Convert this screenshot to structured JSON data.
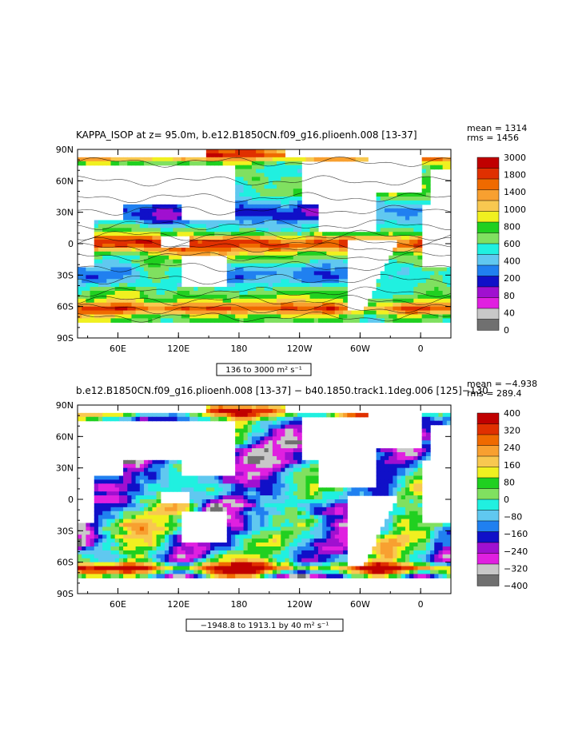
{
  "panels": [
    {
      "title": "KAPPA_ISOP at z=  95.0m, b.e12.B1850CN.f09_g16.plioenh.008  [13-37]",
      "stats": {
        "mean": "mean = 1314",
        "rms": "rms = 1456"
      },
      "range_label": "136 to 3000 m² s⁻¹"
    },
    {
      "title": "b.e12.B1850CN.f09_g16.plioenh.008  [13-37]  −  b40.1850.track1.1deg.006  [125]−130",
      "stats": {
        "mean": "mean = −4.938",
        "rms": "rms = 289.4"
      },
      "range_label": "−1948.8 to 1913.1 by 40 m² s⁻¹"
    }
  ],
  "chart_data": [
    {
      "type": "heatmap",
      "title": "KAPPA_ISOP at z=  95.0m, b.e12.B1850CN.f09_g16.plioenh.008  [13-37]",
      "xlabel": "",
      "ylabel": "",
      "x_ticks": [
        "60E",
        "120E",
        "180",
        "120W",
        "60W",
        "0"
      ],
      "x_tick_lons": [
        60,
        120,
        180,
        240,
        300,
        360
      ],
      "xlim_lon": [
        20,
        390
      ],
      "y_ticks": [
        "90N",
        "60N",
        "30N",
        "0",
        "30S",
        "60S",
        "90S"
      ],
      "y_tick_lats": [
        90,
        60,
        30,
        0,
        -30,
        -60,
        -90
      ],
      "ylim": [
        -90,
        90
      ],
      "colorbar": {
        "labels": [
          "3000",
          "1800",
          "1400",
          "1000",
          "800",
          "600",
          "400",
          "200",
          "80",
          "40",
          "0"
        ],
        "colors": [
          "#c00000",
          "#e03000",
          "#ef6a00",
          "#f8a030",
          "#f8c850",
          "#f0f020",
          "#20d020",
          "#80e060",
          "#20f0e0",
          "#60c8f0",
          "#2080f0",
          "#1010c8",
          "#a010d0",
          "#e020e0",
          "#c8c8c8",
          "#707070"
        ]
      },
      "stats": {
        "mean": 1314,
        "rms": 1456
      },
      "range": {
        "min": 136,
        "max": 3000,
        "units": "m² s⁻¹"
      },
      "contours": true
    },
    {
      "type": "heatmap",
      "title": "b.e12.B1850CN.f09_g16.plioenh.008  [13-37]  −  b40.1850.track1.1deg.006  [125]−130",
      "xlabel": "",
      "ylabel": "",
      "x_ticks": [
        "60E",
        "120E",
        "180",
        "120W",
        "60W",
        "0"
      ],
      "x_tick_lons": [
        60,
        120,
        180,
        240,
        300,
        360
      ],
      "xlim_lon": [
        20,
        390
      ],
      "y_ticks": [
        "90N",
        "60N",
        "30N",
        "0",
        "30S",
        "60S",
        "90S"
      ],
      "y_tick_lats": [
        90,
        60,
        30,
        0,
        -30,
        -60,
        -90
      ],
      "ylim": [
        -90,
        90
      ],
      "colorbar": {
        "labels": [
          "400",
          "320",
          "240",
          "160",
          "80",
          "0",
          "−80",
          "−160",
          "−240",
          "−320",
          "−400"
        ],
        "colors": [
          "#c00000",
          "#e03000",
          "#ef6a00",
          "#f8a030",
          "#f8c850",
          "#f0f020",
          "#20d020",
          "#80e060",
          "#20f0e0",
          "#60c8f0",
          "#2080f0",
          "#1010c8",
          "#a010d0",
          "#e020e0",
          "#c8c8c8",
          "#707070"
        ]
      },
      "stats": {
        "mean": -4.938,
        "rms": 289.4
      },
      "range": {
        "min": -1948.8,
        "max": 1913.1,
        "step": 40,
        "units": "m² s⁻¹"
      },
      "contours": false
    }
  ]
}
